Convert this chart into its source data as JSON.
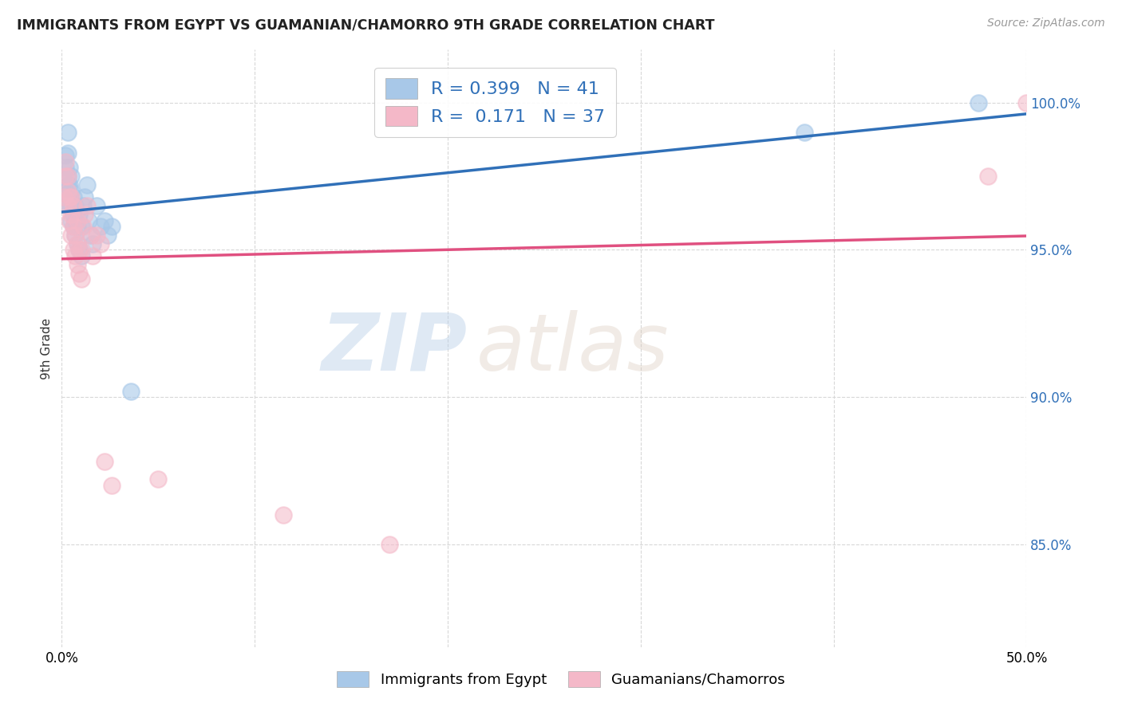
{
  "title": "IMMIGRANTS FROM EGYPT VS GUAMANIAN/CHAMORRO 9TH GRADE CORRELATION CHART",
  "source": "Source: ZipAtlas.com",
  "ylabel": "9th Grade",
  "ylabel_ticks": [
    "100.0%",
    "95.0%",
    "90.0%",
    "85.0%"
  ],
  "ylabel_tick_vals": [
    1.0,
    0.95,
    0.9,
    0.85
  ],
  "xlim": [
    0.0,
    0.5
  ],
  "ylim": [
    0.815,
    1.018
  ],
  "legend_blue_label": "Immigrants from Egypt",
  "legend_pink_label": "Guamanians/Chamorros",
  "R_blue": 0.399,
  "N_blue": 41,
  "R_pink": 0.171,
  "N_pink": 37,
  "blue_color": "#a8c8e8",
  "pink_color": "#f4b8c8",
  "blue_line_color": "#3070b8",
  "pink_line_color": "#e05080",
  "watermark_zip": "ZIP",
  "watermark_atlas": "atlas",
  "grid_color": "#d8d8d8",
  "background_color": "#ffffff",
  "blue_x": [
    0.001,
    0.002,
    0.002,
    0.003,
    0.003,
    0.003,
    0.003,
    0.004,
    0.004,
    0.004,
    0.004,
    0.005,
    0.005,
    0.005,
    0.005,
    0.006,
    0.006,
    0.006,
    0.007,
    0.007,
    0.007,
    0.008,
    0.008,
    0.009,
    0.009,
    0.01,
    0.01,
    0.011,
    0.012,
    0.013,
    0.014,
    0.015,
    0.016,
    0.018,
    0.02,
    0.022,
    0.024,
    0.026,
    0.036,
    0.385,
    0.475
  ],
  "blue_y": [
    0.97,
    0.978,
    0.982,
    0.972,
    0.975,
    0.983,
    0.99,
    0.965,
    0.968,
    0.972,
    0.978,
    0.96,
    0.965,
    0.97,
    0.975,
    0.958,
    0.962,
    0.968,
    0.955,
    0.96,
    0.965,
    0.952,
    0.958,
    0.95,
    0.962,
    0.948,
    0.958,
    0.965,
    0.968,
    0.972,
    0.96,
    0.955,
    0.952,
    0.965,
    0.958,
    0.96,
    0.955,
    0.958,
    0.902,
    0.99,
    1.0
  ],
  "pink_x": [
    0.001,
    0.002,
    0.002,
    0.003,
    0.003,
    0.003,
    0.004,
    0.004,
    0.005,
    0.005,
    0.005,
    0.006,
    0.006,
    0.006,
    0.007,
    0.007,
    0.008,
    0.008,
    0.008,
    0.009,
    0.009,
    0.01,
    0.01,
    0.011,
    0.012,
    0.013,
    0.015,
    0.016,
    0.018,
    0.02,
    0.022,
    0.026,
    0.05,
    0.115,
    0.17,
    0.48,
    0.5
  ],
  "pink_y": [
    0.968,
    0.975,
    0.98,
    0.965,
    0.97,
    0.975,
    0.96,
    0.968,
    0.955,
    0.962,
    0.968,
    0.95,
    0.958,
    0.965,
    0.948,
    0.955,
    0.945,
    0.952,
    0.96,
    0.942,
    0.95,
    0.94,
    0.95,
    0.958,
    0.962,
    0.965,
    0.955,
    0.948,
    0.955,
    0.952,
    0.878,
    0.87,
    0.872,
    0.86,
    0.85,
    0.975,
    1.0
  ]
}
